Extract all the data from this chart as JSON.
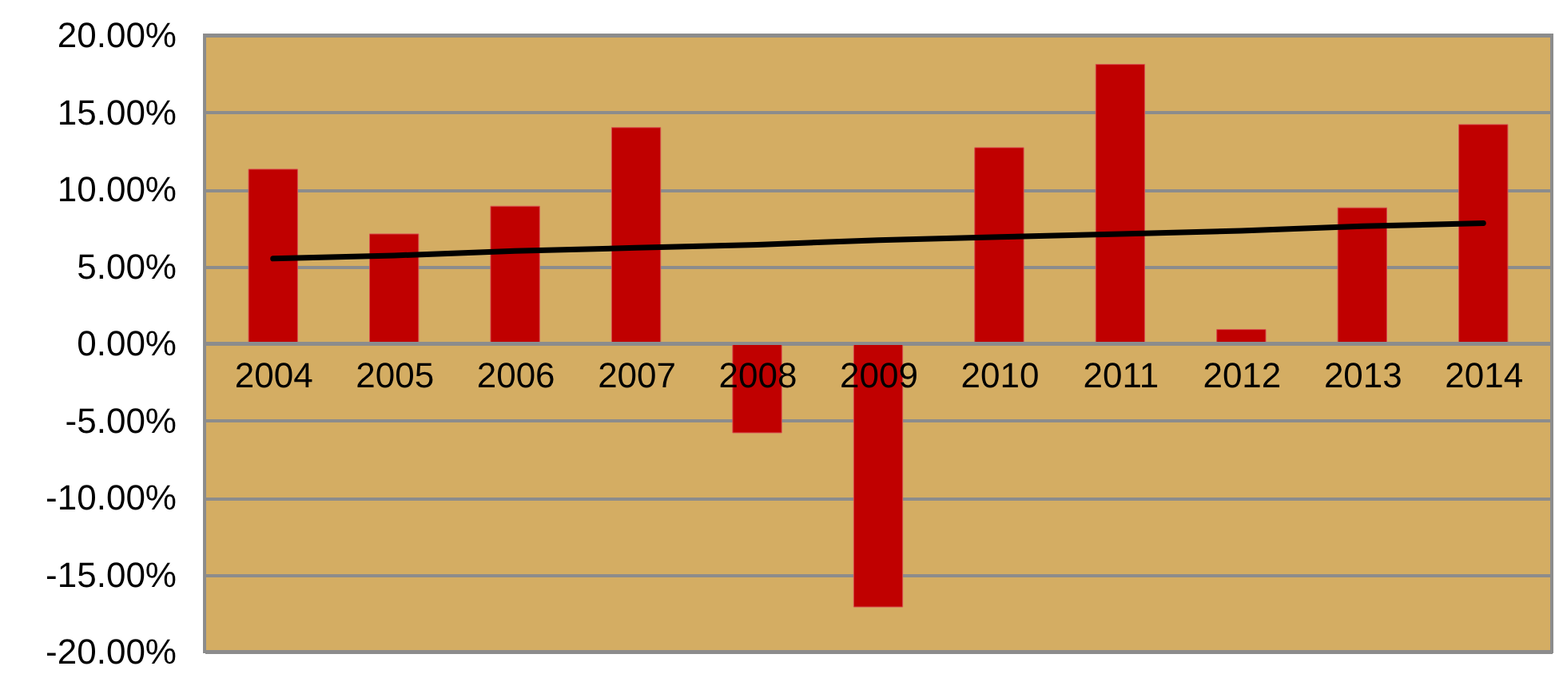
{
  "chart_data": {
    "type": "bar",
    "categories": [
      "2004",
      "2005",
      "2006",
      "2007",
      "2008",
      "2009",
      "2010",
      "2011",
      "2012",
      "2013",
      "2014"
    ],
    "series": [
      {
        "color": "#c00000",
        "values": [
          11.3,
          7.1,
          8.9,
          14.0,
          -5.8,
          -17.1,
          12.7,
          18.1,
          0.9,
          8.8,
          14.2
        ]
      },
      {
        "type": "line",
        "color": "#000000",
        "values": [
          5.5,
          5.7,
          6.0,
          6.2,
          6.4,
          6.7,
          6.9,
          7.1,
          7.3,
          7.6,
          7.8
        ]
      }
    ],
    "ylim": [
      -20,
      20
    ],
    "yticks": [
      {
        "value": -20,
        "label": "-20.00%"
      },
      {
        "value": -15,
        "label": "-15.00%"
      },
      {
        "value": -10,
        "label": "-10.00%"
      },
      {
        "value": -5,
        "label": "-5.00%"
      },
      {
        "value": 0,
        "label": "0.00%"
      },
      {
        "value": 5,
        "label": "5.00%"
      },
      {
        "value": 10,
        "label": "10.00%"
      },
      {
        "value": 15,
        "label": "15.00%"
      },
      {
        "value": 20,
        "label": "20.00%"
      }
    ],
    "grid": "y",
    "marker": "none",
    "line_style": "solid"
  }
}
